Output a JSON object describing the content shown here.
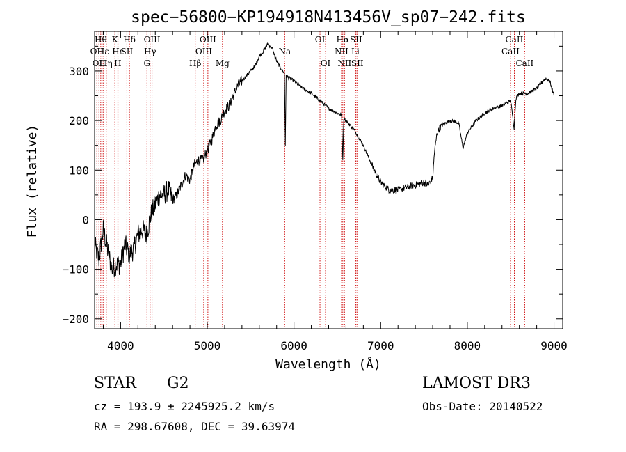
{
  "chart_data": {
    "type": "line",
    "title": "spec−56800−KP194918N413456V_sp07−242.fits",
    "xlabel": "Wavelength (Å)",
    "ylabel": "Flux (relative)",
    "xlim": [
      3700,
      9100
    ],
    "ylim": [
      -220,
      380
    ],
    "xticks": [
      {
        "value": 4000,
        "label": "4000"
      },
      {
        "value": 5000,
        "label": "5000"
      },
      {
        "value": 6000,
        "label": "6000"
      },
      {
        "value": 7000,
        "label": "7000"
      },
      {
        "value": 8000,
        "label": "8000"
      },
      {
        "value": 9000,
        "label": "9000"
      }
    ],
    "yticks": [
      {
        "value": -200,
        "label": "−200"
      },
      {
        "value": -100,
        "label": "−100"
      },
      {
        "value": 0,
        "label": "0"
      },
      {
        "value": 100,
        "label": "100"
      },
      {
        "value": 200,
        "label": "200"
      },
      {
        "value": 300,
        "label": "300"
      }
    ],
    "series": [
      {
        "name": "spectrum",
        "x": [
          3700,
          3750,
          3800,
          3850,
          3900,
          3950,
          4000,
          4050,
          4100,
          4150,
          4200,
          4250,
          4300,
          4350,
          4400,
          4450,
          4500,
          4550,
          4600,
          4650,
          4700,
          4750,
          4800,
          4850,
          4900,
          4950,
          5000,
          5050,
          5100,
          5150,
          5200,
          5250,
          5300,
          5350,
          5400,
          5450,
          5500,
          5550,
          5600,
          5650,
          5700,
          5750,
          5800,
          5850,
          5890,
          5900,
          5910,
          5950,
          6000,
          6100,
          6200,
          6300,
          6400,
          6500,
          6550,
          6563,
          6575,
          6600,
          6700,
          6800,
          6900,
          7000,
          7100,
          7200,
          7300,
          7400,
          7500,
          7550,
          7600,
          7620,
          7650,
          7700,
          7800,
          7900,
          7950,
          8000,
          8100,
          8200,
          8300,
          8400,
          8500,
          8540,
          8560,
          8600,
          8700,
          8800,
          8850,
          8900,
          8950,
          9000
        ],
        "values": [
          -50,
          -80,
          -20,
          -60,
          -100,
          -90,
          -90,
          -50,
          -70,
          -60,
          -30,
          -20,
          -30,
          10,
          30,
          50,
          50,
          60,
          40,
          50,
          70,
          90,
          80,
          110,
          120,
          120,
          140,
          160,
          190,
          200,
          220,
          230,
          250,
          270,
          280,
          290,
          300,
          310,
          330,
          340,
          355,
          345,
          320,
          305,
          295,
          150,
          290,
          285,
          280,
          265,
          255,
          240,
          225,
          215,
          210,
          120,
          205,
          200,
          180,
          150,
          110,
          75,
          60,
          60,
          65,
          70,
          75,
          70,
          85,
          135,
          175,
          190,
          200,
          195,
          145,
          175,
          200,
          215,
          225,
          230,
          240,
          185,
          245,
          255,
          255,
          265,
          275,
          285,
          280,
          250
        ]
      }
    ],
    "lines": [
      {
        "wl": 3726,
        "labels": [
          {
            "text": "OII",
            "row": 2
          }
        ]
      },
      {
        "wl": 3750,
        "labels": [
          {
            "text": "OII",
            "row": 3
          }
        ]
      },
      {
        "wl": 3771,
        "labels": [
          {
            "text": "Hθ",
            "row": 1
          }
        ]
      },
      {
        "wl": 3798,
        "labels": [
          {
            "text": "Hε",
            "row": 2
          }
        ]
      },
      {
        "wl": 3835,
        "labels": [
          {
            "text": "Hη",
            "row": 3
          }
        ]
      },
      {
        "wl": 3889,
        "labels": []
      },
      {
        "wl": 3934,
        "labels": [
          {
            "text": "K",
            "row": 1
          }
        ]
      },
      {
        "wl": 3968,
        "labels": [
          {
            "text": "H",
            "row": 3
          }
        ]
      },
      {
        "wl": 3970,
        "labels": [
          {
            "text": "Hε",
            "row": 2
          }
        ]
      },
      {
        "wl": 4072,
        "labels": [
          {
            "text": "SII",
            "row": 2
          }
        ]
      },
      {
        "wl": 4102,
        "labels": [
          {
            "text": "Hδ",
            "row": 1
          }
        ]
      },
      {
        "wl": 4304,
        "labels": [
          {
            "text": "G",
            "row": 3
          }
        ]
      },
      {
        "wl": 4340,
        "labels": [
          {
            "text": "Hγ",
            "row": 2
          }
        ]
      },
      {
        "wl": 4363,
        "labels": [
          {
            "text": "OIII",
            "row": 1
          }
        ]
      },
      {
        "wl": 4861,
        "labels": [
          {
            "text": "Hβ",
            "row": 3
          }
        ]
      },
      {
        "wl": 4959,
        "labels": [
          {
            "text": "OIII",
            "row": 2
          }
        ]
      },
      {
        "wl": 5007,
        "labels": [
          {
            "text": "OIII",
            "row": 1
          }
        ]
      },
      {
        "wl": 5175,
        "labels": [
          {
            "text": "Mg",
            "row": 3
          }
        ]
      },
      {
        "wl": 5893,
        "labels": [
          {
            "text": "Na",
            "row": 2
          }
        ]
      },
      {
        "wl": 6300,
        "labels": [
          {
            "text": "OI",
            "row": 1
          }
        ]
      },
      {
        "wl": 6364,
        "labels": [
          {
            "text": "OI",
            "row": 3
          }
        ]
      },
      {
        "wl": 6548,
        "labels": [
          {
            "text": "NII",
            "row": 2
          }
        ]
      },
      {
        "wl": 6563,
        "labels": [
          {
            "text": "Hα",
            "row": 1
          }
        ]
      },
      {
        "wl": 6583,
        "labels": [
          {
            "text": "NII",
            "row": 3
          }
        ]
      },
      {
        "wl": 6708,
        "labels": [
          {
            "text": "Li",
            "row": 2
          }
        ]
      },
      {
        "wl": 6716,
        "labels": [
          {
            "text": "SII",
            "row": 1
          }
        ]
      },
      {
        "wl": 6731,
        "labels": [
          {
            "text": "SII",
            "row": 3
          }
        ]
      },
      {
        "wl": 8498,
        "labels": [
          {
            "text": "CaII",
            "row": 2
          }
        ]
      },
      {
        "wl": 8542,
        "labels": [
          {
            "text": "CaII",
            "row": 1
          }
        ]
      },
      {
        "wl": 8662,
        "labels": [
          {
            "text": "CaII",
            "row": 3
          }
        ]
      }
    ]
  },
  "info": {
    "class_label": "STAR",
    "subclass_label": "G2",
    "survey": "LAMOST DR3",
    "cz_line": "cz = 193.9 ± 2245925.2 km/s",
    "obs_date": "Obs-Date: 20140522",
    "coords": "RA = 298.67608, DEC =  39.63974"
  },
  "colors": {
    "spectrum": "#000000",
    "line_marker": "#cc0000",
    "axes": "#000000"
  }
}
